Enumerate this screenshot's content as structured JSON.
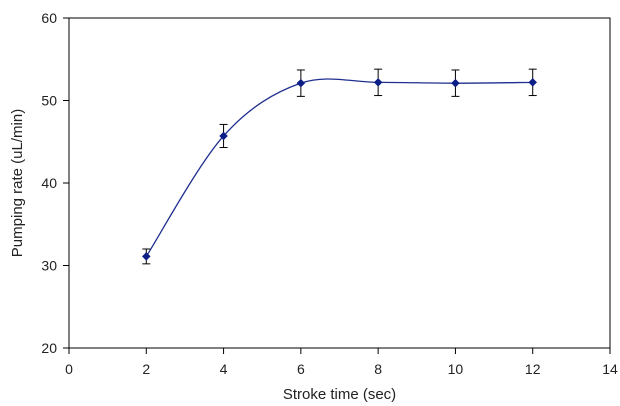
{
  "chart_data": {
    "type": "line",
    "title": "",
    "xlabel": "Stroke time (sec)",
    "ylabel": "Pumping rate (uL/min)",
    "xlim": [
      0,
      14
    ],
    "ylim": [
      20,
      60
    ],
    "xticks": [
      "0",
      "2",
      "4",
      "6",
      "8",
      "10",
      "12",
      "14"
    ],
    "yticks": [
      "20",
      "30",
      "40",
      "50",
      "60"
    ],
    "grid": false,
    "legend": "none",
    "line_color": "#1f2f8f",
    "marker_color": "#0b1f86",
    "smoothed": true,
    "series": [
      {
        "x": [
          2,
          4,
          6,
          8,
          10,
          12
        ],
        "values": [
          31.1,
          45.7,
          52.1,
          52.2,
          52.1,
          52.2
        ],
        "error": [
          0.9,
          1.4,
          1.6,
          1.6,
          1.6,
          1.6
        ]
      }
    ]
  }
}
